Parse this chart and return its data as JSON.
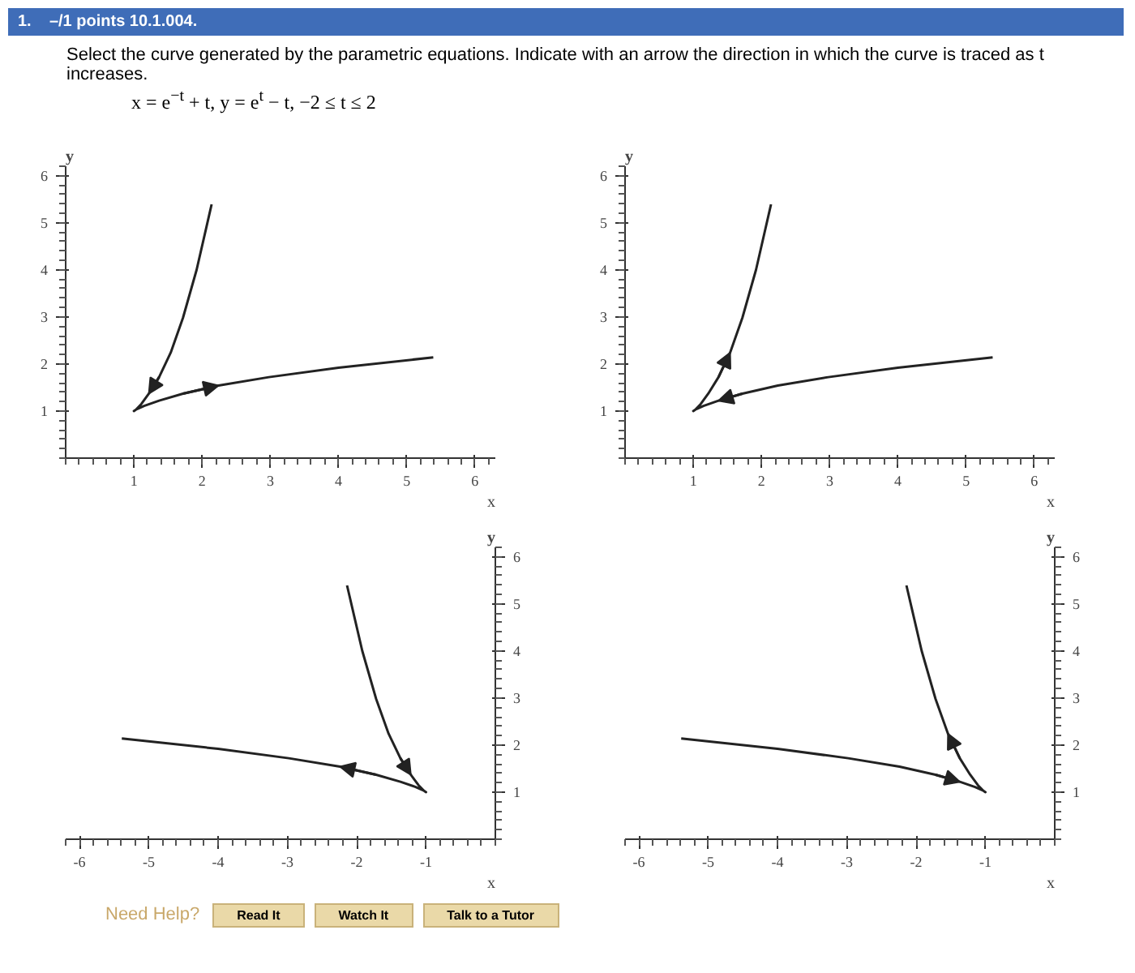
{
  "chart_data": [
    {
      "type": "line",
      "title": "Select the curve generated by the parametric equations. Indicate with an arrow the direction in which the curve is traced as t increases.",
      "subtitle": "x = e$^{−t}$ + t,  y = e$^{t}$ − t,   −2 ≤ t ≤ 2",
      "annotations": [
        "1.",
        "–/1 points 10.1.004."
      ],
      "xlabel": "x",
      "ylabel": "y",
      "series": [
        {
          "color": "#222222",
          "x": [
            2.14,
            1.92,
            1.72,
            1.54,
            1.37,
            1.22,
            1.11,
            1.03,
            1,
            1.03,
            1.15,
            1.37,
            1.72,
            2.24,
            2.98,
            4.0,
            5.39
          ],
          "values": [
            5.39,
            4.0,
            2.98,
            2.24,
            1.72,
            1.37,
            1.15,
            1.03,
            1,
            1.03,
            1.11,
            1.22,
            1.37,
            1.54,
            1.72,
            1.92,
            2.14
          ]
        }
      ],
      "xlim": [
        0,
        6.3
      ],
      "ylim": [
        0,
        6.2
      ],
      "xticks": [
        1,
        2,
        3,
        4,
        5,
        6
      ],
      "yticks": [
        1,
        2,
        3,
        4,
        5,
        6
      ]
    },
    {
      "type": "line",
      "xlabel": "x",
      "ylabel": "y",
      "series": [
        {
          "color": "#222222",
          "x": [
            5.39,
            4.0,
            2.98,
            2.24,
            1.72,
            1.37,
            1.15,
            1.03,
            1,
            1.03,
            1.11,
            1.22,
            1.37,
            1.54,
            1.72,
            1.92,
            2.14
          ],
          "values": [
            2.14,
            1.92,
            1.72,
            1.54,
            1.37,
            1.22,
            1.11,
            1.03,
            1,
            1.03,
            1.15,
            1.37,
            1.72,
            2.24,
            2.98,
            4.0,
            5.39
          ]
        }
      ],
      "xlim": [
        0,
        6.3
      ],
      "ylim": [
        0,
        6.2
      ],
      "xticks": [
        1,
        2,
        3,
        4,
        5,
        6
      ],
      "yticks": [
        1,
        2,
        3,
        4,
        5,
        6
      ]
    },
    {
      "type": "line",
      "xlabel": "x",
      "ylabel": "y",
      "annotations": [
        "Need Help?",
        "Read It",
        "Watch It",
        "Talk to a Tutor"
      ],
      "series": [
        {
          "color": "#222222",
          "x": [
            -2.14,
            -1.92,
            -1.72,
            -1.54,
            -1.37,
            -1.22,
            -1.11,
            -1.03,
            -1,
            -1.03,
            -1.15,
            -1.37,
            -1.72,
            -2.24,
            -2.98,
            -4.0,
            -5.39
          ],
          "values": [
            5.39,
            4.0,
            2.98,
            2.24,
            1.72,
            1.37,
            1.15,
            1.03,
            1,
            1.03,
            1.11,
            1.22,
            1.37,
            1.54,
            1.72,
            1.92,
            2.14
          ]
        }
      ],
      "xlim": [
        -6.2,
        0
      ],
      "ylim": [
        0,
        6.2
      ],
      "xticks": [
        -6,
        -5,
        -4,
        -3,
        -2,
        -1
      ],
      "yticks": [
        1,
        2,
        3,
        4,
        5,
        6
      ]
    },
    {
      "type": "line",
      "xlabel": "x",
      "ylabel": "y",
      "series": [
        {
          "color": "#222222",
          "x": [
            -5.39,
            -4.0,
            -2.98,
            -2.24,
            -1.72,
            -1.37,
            -1.15,
            -1.03,
            -1,
            -1.03,
            -1.11,
            -1.22,
            -1.37,
            -1.54,
            -1.72,
            -1.92,
            -2.14
          ],
          "values": [
            2.14,
            1.92,
            1.72,
            1.54,
            1.37,
            1.22,
            1.11,
            1.03,
            1,
            1.03,
            1.15,
            1.37,
            1.72,
            2.24,
            2.98,
            4.0,
            5.39
          ]
        }
      ],
      "xlim": [
        -6.2,
        0
      ],
      "ylim": [
        0,
        6.2
      ],
      "xticks": [
        -6,
        -5,
        -4,
        -3,
        -2,
        -1
      ],
      "yticks": [
        1,
        2,
        3,
        4,
        5,
        6
      ]
    }
  ]
}
